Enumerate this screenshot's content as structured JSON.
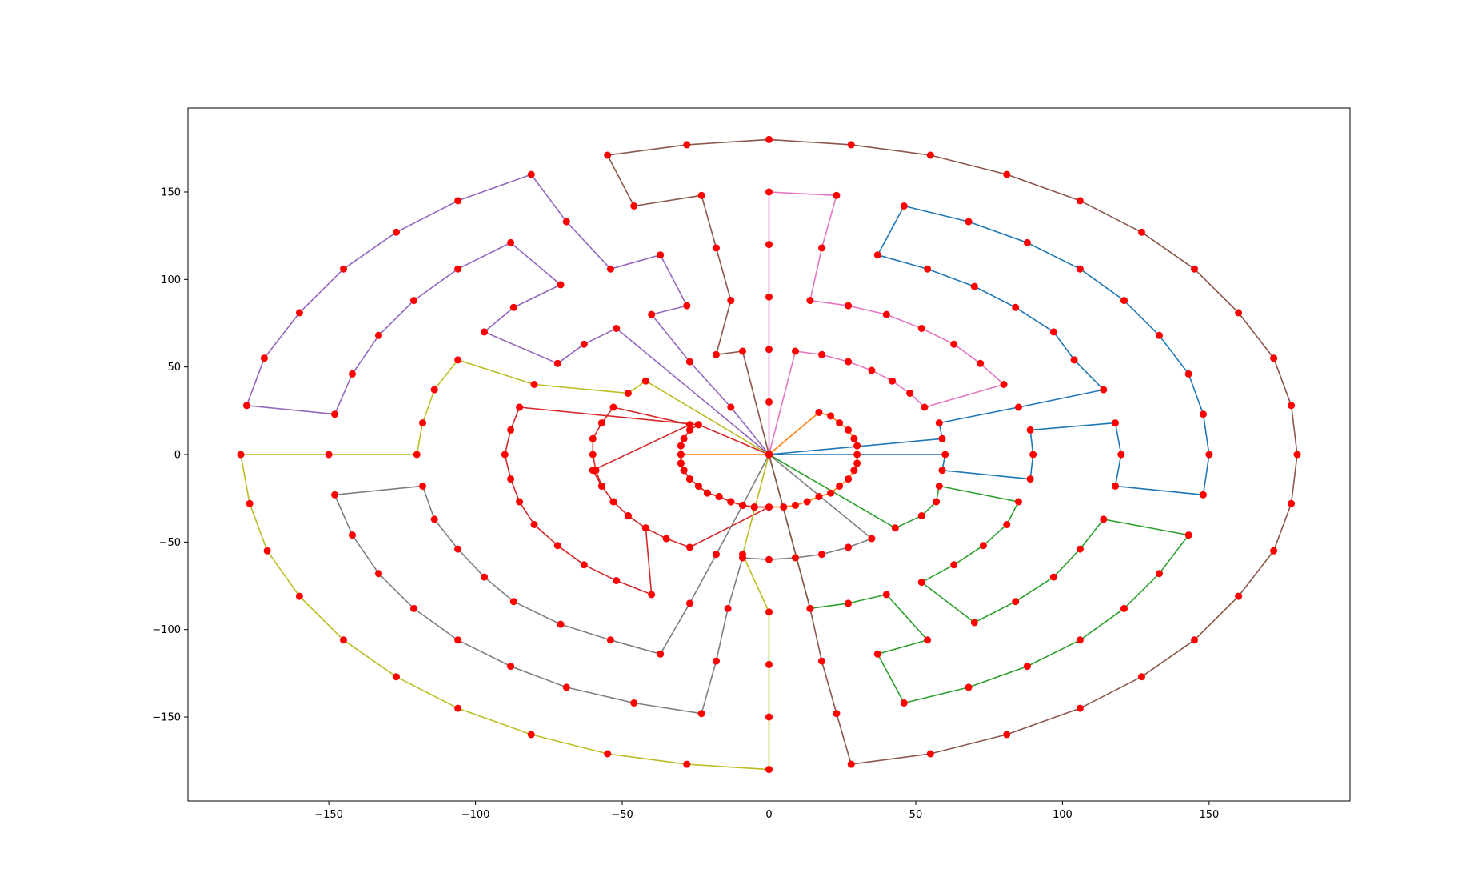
{
  "chart_data": {
    "type": "line",
    "title": "",
    "xlabel": "",
    "ylabel": "",
    "xlim": [
      -198,
      198
    ],
    "ylim": [
      -198,
      198
    ],
    "xticks": [
      -150,
      -100,
      -50,
      0,
      50,
      100,
      150
    ],
    "xtick_labels": [
      "−150",
      "−100",
      "−50",
      "0",
      "50",
      "100",
      "150"
    ],
    "yticks": [
      -150,
      -100,
      -50,
      0,
      50,
      100,
      150
    ],
    "ytick_labels": [
      "−150",
      "−100",
      "−50",
      "0",
      "50",
      "100",
      "150"
    ],
    "grid": false,
    "marker_color": "#ff0000",
    "series": [
      {
        "color": "#1f77b4",
        "points": [
          [
            0,
            0
          ],
          [
            59,
            9
          ],
          [
            58,
            18
          ],
          [
            85,
            27
          ],
          [
            114,
            37
          ],
          [
            104,
            54
          ],
          [
            97,
            70
          ],
          [
            84,
            84
          ],
          [
            70,
            96
          ],
          [
            54,
            106
          ],
          [
            37,
            114
          ],
          [
            46,
            142
          ],
          [
            68,
            133
          ],
          [
            88,
            121
          ],
          [
            106,
            106
          ],
          [
            121,
            88
          ],
          [
            133,
            68
          ],
          [
            143,
            46
          ],
          [
            148,
            23
          ],
          [
            150,
            0
          ],
          [
            148,
            -23
          ],
          [
            118,
            -18
          ],
          [
            120,
            0
          ],
          [
            118,
            18
          ],
          [
            89,
            14
          ],
          [
            90,
            0
          ],
          [
            89,
            -14
          ],
          [
            59,
            -9
          ],
          [
            60,
            0
          ],
          [
            0,
            0
          ]
        ]
      },
      {
        "color": "#ff7f0e",
        "points": [
          [
            0,
            0
          ],
          [
            17,
            24
          ],
          [
            21,
            22
          ],
          [
            24,
            18
          ],
          [
            27,
            14
          ],
          [
            29,
            9
          ],
          [
            30,
            5
          ],
          [
            30,
            0
          ],
          [
            30,
            -5
          ],
          [
            29,
            -9
          ],
          [
            27,
            -14
          ],
          [
            24,
            -18
          ],
          [
            21,
            -22
          ],
          [
            17,
            -24
          ],
          [
            13,
            -27
          ],
          [
            9,
            -29
          ],
          [
            5,
            -30
          ],
          [
            0,
            -30
          ],
          [
            -5,
            -30
          ],
          [
            -9,
            -29
          ],
          [
            -13,
            -27
          ],
          [
            -17,
            -24
          ],
          [
            -21,
            -22
          ],
          [
            -24,
            -18
          ],
          [
            -27,
            -14
          ],
          [
            -29,
            -9
          ],
          [
            -30,
            -5
          ],
          [
            -30,
            0
          ],
          [
            0,
            0
          ]
        ]
      },
      {
        "color": "#2ca02c",
        "points": [
          [
            0,
            0
          ],
          [
            43,
            -42
          ],
          [
            52,
            -35
          ],
          [
            57,
            -27
          ],
          [
            58,
            -18
          ],
          [
            85,
            -27
          ],
          [
            81,
            -40
          ],
          [
            73,
            -52
          ],
          [
            63,
            -63
          ],
          [
            52,
            -73
          ],
          [
            70,
            -96
          ],
          [
            84,
            -84
          ],
          [
            97,
            -70
          ],
          [
            106,
            -54
          ],
          [
            114,
            -37
          ],
          [
            143,
            -46
          ],
          [
            133,
            -68
          ],
          [
            121,
            -88
          ],
          [
            106,
            -106
          ],
          [
            88,
            -121
          ],
          [
            68,
            -133
          ],
          [
            46,
            -142
          ],
          [
            37,
            -114
          ],
          [
            54,
            -106
          ],
          [
            40,
            -80
          ],
          [
            27,
            -85
          ],
          [
            14,
            -88
          ],
          [
            0,
            0
          ]
        ]
      },
      {
        "color": "#d62728",
        "points": [
          [
            0,
            0
          ],
          [
            -24,
            17
          ],
          [
            -27,
            14
          ],
          [
            -29,
            9
          ],
          [
            -30,
            5
          ],
          [
            -30,
            0
          ],
          [
            -30,
            -5
          ],
          [
            -29,
            -9
          ],
          [
            -27,
            -14
          ],
          [
            -24,
            -18
          ],
          [
            -21,
            -22
          ],
          [
            -17,
            -24
          ],
          [
            -13,
            -27
          ],
          [
            -9,
            -29
          ],
          [
            -5,
            -30
          ],
          [
            0,
            -30
          ],
          [
            -27,
            -53
          ],
          [
            -35,
            -48
          ],
          [
            -42,
            -42
          ],
          [
            -48,
            -35
          ],
          [
            -53,
            -27
          ],
          [
            -57,
            -18
          ],
          [
            -60,
            -9
          ],
          [
            -27,
            17
          ],
          [
            -53,
            27
          ],
          [
            -57,
            18
          ],
          [
            -60,
            9
          ],
          [
            -60,
            0
          ],
          [
            -59,
            -9
          ],
          [
            -57,
            -18
          ],
          [
            -53,
            -27
          ],
          [
            -48,
            -35
          ],
          [
            -42,
            -42
          ],
          [
            -40,
            -80
          ],
          [
            -52,
            -72
          ],
          [
            -63,
            -63
          ],
          [
            -72,
            -52
          ],
          [
            -80,
            -40
          ],
          [
            -85,
            -27
          ],
          [
            -88,
            -14
          ],
          [
            -90,
            0
          ],
          [
            -88,
            14
          ],
          [
            -85,
            27
          ],
          [
            -24,
            17
          ]
        ]
      },
      {
        "color": "#9467bd",
        "points": [
          [
            0,
            0
          ],
          [
            -13,
            27
          ],
          [
            -27,
            53
          ],
          [
            -40,
            80
          ],
          [
            -28,
            85
          ],
          [
            -37,
            114
          ],
          [
            -54,
            106
          ],
          [
            -69,
            133
          ],
          [
            -81,
            160
          ],
          [
            -106,
            145
          ],
          [
            -127,
            127
          ],
          [
            -145,
            106
          ],
          [
            -160,
            81
          ],
          [
            -172,
            55
          ],
          [
            -178,
            28
          ],
          [
            -148,
            23
          ],
          [
            -142,
            46
          ],
          [
            -133,
            68
          ],
          [
            -121,
            88
          ],
          [
            -106,
            106
          ],
          [
            -88,
            121
          ],
          [
            -71,
            97
          ],
          [
            -87,
            84
          ],
          [
            -97,
            70
          ],
          [
            -72,
            52
          ],
          [
            -63,
            63
          ],
          [
            -52,
            72
          ],
          [
            0,
            0
          ]
        ]
      },
      {
        "color": "#8c564b",
        "points": [
          [
            0,
            0
          ],
          [
            -9,
            59
          ],
          [
            -18,
            57
          ],
          [
            -13,
            88
          ],
          [
            -18,
            118
          ],
          [
            -23,
            148
          ],
          [
            -46,
            142
          ],
          [
            -55,
            171
          ],
          [
            -28,
            177
          ],
          [
            0,
            180
          ],
          [
            28,
            177
          ],
          [
            55,
            171
          ],
          [
            81,
            160
          ],
          [
            106,
            145
          ],
          [
            127,
            127
          ],
          [
            145,
            106
          ],
          [
            160,
            81
          ],
          [
            172,
            55
          ],
          [
            178,
            28
          ],
          [
            180,
            0
          ],
          [
            178,
            -28
          ],
          [
            172,
            -55
          ],
          [
            160,
            -81
          ],
          [
            145,
            -106
          ],
          [
            127,
            -127
          ],
          [
            106,
            -145
          ],
          [
            81,
            -160
          ],
          [
            55,
            -171
          ],
          [
            28,
            -177
          ],
          [
            23,
            -148
          ],
          [
            18,
            -118
          ],
          [
            14,
            -88
          ],
          [
            0,
            0
          ]
        ]
      },
      {
        "color": "#e377c2",
        "points": [
          [
            0,
            0
          ],
          [
            0,
            30
          ],
          [
            0,
            60
          ],
          [
            0,
            90
          ],
          [
            0,
            120
          ],
          [
            0,
            150
          ],
          [
            23,
            148
          ],
          [
            18,
            118
          ],
          [
            14,
            88
          ],
          [
            27,
            85
          ],
          [
            40,
            80
          ],
          [
            52,
            72
          ],
          [
            63,
            63
          ],
          [
            72,
            52
          ],
          [
            80,
            40
          ],
          [
            53,
            27
          ],
          [
            48,
            35
          ],
          [
            42,
            42
          ],
          [
            35,
            48
          ],
          [
            27,
            53
          ],
          [
            18,
            57
          ],
          [
            9,
            59
          ],
          [
            0,
            0
          ]
        ]
      },
      {
        "color": "#7f7f7f",
        "points": [
          [
            0,
            0
          ],
          [
            -9,
            -29
          ],
          [
            -18,
            -57
          ],
          [
            -27,
            -85
          ],
          [
            -37,
            -114
          ],
          [
            -54,
            -106
          ],
          [
            -71,
            -97
          ],
          [
            -87,
            -84
          ],
          [
            -97,
            -70
          ],
          [
            -106,
            -54
          ],
          [
            -114,
            -37
          ],
          [
            -118,
            -18
          ],
          [
            -148,
            -23
          ],
          [
            -142,
            -46
          ],
          [
            -133,
            -68
          ],
          [
            -121,
            -88
          ],
          [
            -106,
            -106
          ],
          [
            -88,
            -121
          ],
          [
            -69,
            -133
          ],
          [
            -46,
            -142
          ],
          [
            -23,
            -148
          ],
          [
            -18,
            -118
          ],
          [
            -14,
            -88
          ],
          [
            -9,
            -59
          ],
          [
            0,
            -60
          ],
          [
            9,
            -59
          ],
          [
            18,
            -57
          ],
          [
            27,
            -53
          ],
          [
            35,
            -48
          ],
          [
            0,
            0
          ]
        ]
      },
      {
        "color": "#bcbd22",
        "points": [
          [
            0,
            0
          ],
          [
            -42,
            42
          ],
          [
            -48,
            35
          ],
          [
            -80,
            40
          ],
          [
            -106,
            54
          ],
          [
            -114,
            37
          ],
          [
            -118,
            18
          ],
          [
            -120,
            0
          ],
          [
            -150,
            0
          ],
          [
            -180,
            0
          ],
          [
            -177,
            -28
          ],
          [
            -171,
            -55
          ],
          [
            -160,
            -81
          ],
          [
            -145,
            -106
          ],
          [
            -127,
            -127
          ],
          [
            -106,
            -145
          ],
          [
            -81,
            -160
          ],
          [
            -55,
            -171
          ],
          [
            -28,
            -177
          ],
          [
            0,
            -180
          ],
          [
            0,
            -150
          ],
          [
            0,
            -120
          ],
          [
            0,
            -90
          ],
          [
            -9,
            -57
          ],
          [
            0,
            0
          ]
        ]
      }
    ]
  }
}
